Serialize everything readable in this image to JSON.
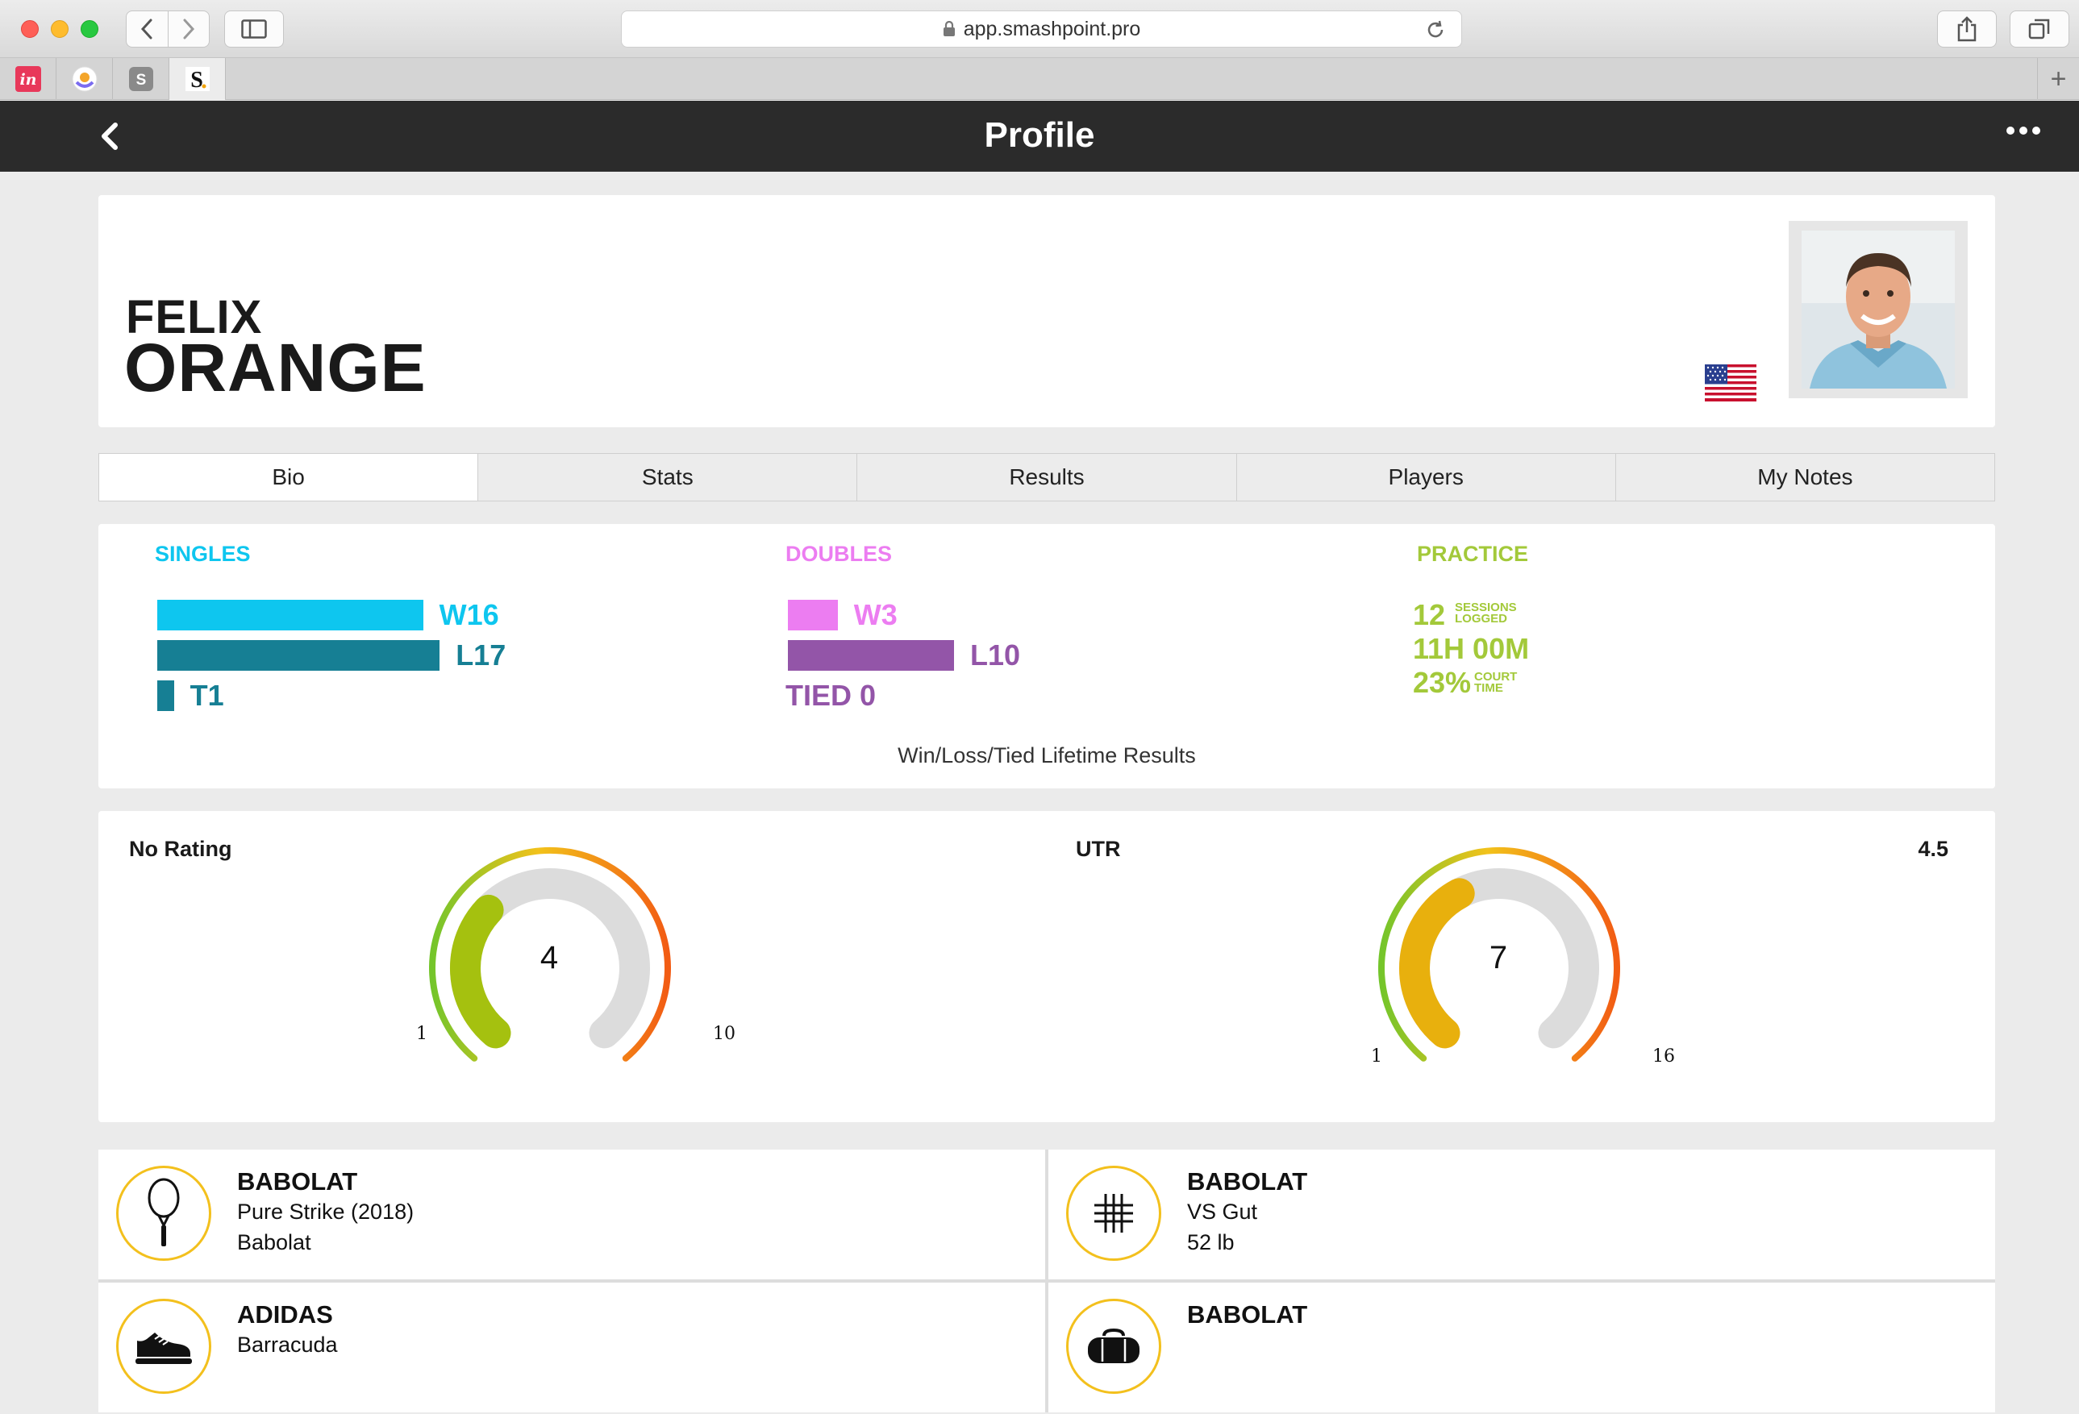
{
  "browser": {
    "url": "app.smashpoint.pro",
    "pinned_tabs": [
      "invision-icon",
      "app-logo-icon",
      "s-app-icon",
      "s-bold-icon"
    ]
  },
  "app": {
    "title": "Profile"
  },
  "profile": {
    "first_name": "FELIX",
    "last_name": "ORANGE",
    "flag": "us-flag-icon"
  },
  "tabs": [
    {
      "label": "Bio",
      "active": true
    },
    {
      "label": "Stats",
      "active": false
    },
    {
      "label": "Results",
      "active": false
    },
    {
      "label": "Players",
      "active": false
    },
    {
      "label": "My Notes",
      "active": false
    }
  ],
  "results": {
    "caption": "Win/Loss/Tied Lifetime Results",
    "singles": {
      "heading": "SINGLES",
      "color": "#0ec6ef",
      "color_dark": "#167f94",
      "wins_label": "W16",
      "wins": 16,
      "losses_label": "L17",
      "losses": 17,
      "ties_label": "T1",
      "ties": 1
    },
    "doubles": {
      "heading": "DOUBLES",
      "color": "#ec7df1",
      "color_dark": "#9355a8",
      "wins_label": "W3",
      "wins": 3,
      "losses_label": "L10",
      "losses": 10,
      "ties_label": "TIED 0",
      "ties": 0
    },
    "practice": {
      "heading": "PRACTICE",
      "color": "#a3c93a",
      "sessions": "12",
      "sessions_unit_1": "SESSIONS",
      "sessions_unit_2": "LOGGED",
      "time": "11H 00M",
      "court_pct": "23%",
      "court_unit_1": "COURT",
      "court_unit_2": "TIME"
    }
  },
  "ratings": {
    "left": {
      "label": "No Rating",
      "value": "4",
      "min": "1",
      "max": "10",
      "value_num": 4,
      "min_num": 1,
      "max_num": 10,
      "fill_color": "#a5c10f"
    },
    "right": {
      "label": "UTR",
      "score": "4.5",
      "value": "7",
      "min": "1",
      "max": "16",
      "value_num": 7,
      "min_num": 1,
      "max_num": 16,
      "fill_color": "#e8b00d"
    }
  },
  "equipment": [
    {
      "icon": "racquet-icon",
      "brand": "BABOLAT",
      "line1": "Pure Strike (2018)",
      "line2": "Babolat"
    },
    {
      "icon": "strings-icon",
      "brand": "BABOLAT",
      "line1": "VS Gut",
      "line2": "52 lb"
    },
    {
      "icon": "shoe-icon",
      "brand": "ADIDAS",
      "line1": "Barracuda",
      "line2": ""
    },
    {
      "icon": "bag-icon",
      "brand": "BABOLAT",
      "line1": "",
      "line2": ""
    }
  ]
}
